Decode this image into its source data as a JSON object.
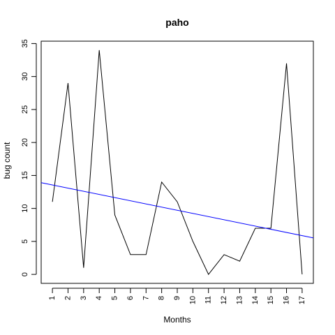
{
  "chart_data": {
    "type": "line",
    "title": "paho",
    "xlabel": "Months",
    "ylabel": "bug count",
    "x": [
      1,
      2,
      3,
      4,
      5,
      6,
      7,
      8,
      9,
      10,
      11,
      12,
      13,
      14,
      15,
      16,
      17
    ],
    "xtick_labels": [
      "1",
      "2",
      "3",
      "4",
      "5",
      "6",
      "7",
      "8",
      "9",
      "10",
      "11",
      "12",
      "13",
      "14",
      "15",
      "16",
      "17"
    ],
    "ytick_labels": [
      "0",
      "5",
      "10",
      "15",
      "20",
      "25",
      "30",
      "35"
    ],
    "yticks": [
      0,
      5,
      10,
      15,
      20,
      25,
      30,
      35
    ],
    "series": [
      {
        "values": [
          11,
          29,
          1,
          34,
          9,
          3,
          3,
          14,
          11,
          5,
          0,
          3,
          2,
          7,
          7,
          32,
          0
        ],
        "color": "#000000"
      }
    ],
    "trend_line": {
      "intercept": 14.04,
      "slope": -0.48,
      "color": "#0000ff"
    },
    "xlim": [
      0.28,
      17.72
    ],
    "ylim": [
      -1.36,
      35.36
    ],
    "grid": false,
    "legend": "none"
  }
}
